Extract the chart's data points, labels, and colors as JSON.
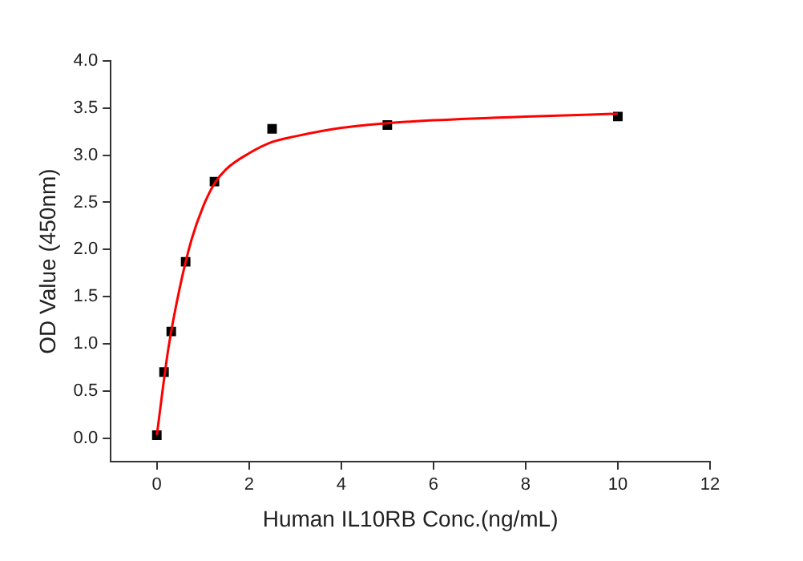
{
  "chart_data": {
    "type": "scatter",
    "xlabel": "Human IL10RB Conc.(ng/mL)",
    "ylabel": "OD Value (450nm)",
    "xlim": [
      -1,
      12
    ],
    "xticks": [
      0,
      2,
      4,
      6,
      8,
      10,
      12
    ],
    "ylim": [
      -0.25,
      4.0
    ],
    "yticks": [
      {
        "value": 0,
        "label": "0.0"
      },
      {
        "value": 0.5,
        "label": "0.5"
      },
      {
        "value": 1,
        "label": "1.0"
      },
      {
        "value": 1.5,
        "label": "1.5"
      },
      {
        "value": 2,
        "label": "2.0"
      },
      {
        "value": 2.5,
        "label": "2.5"
      },
      {
        "value": 3,
        "label": "3.0"
      },
      {
        "value": 3.5,
        "label": "3.5"
      },
      {
        "value": 4,
        "label": "4.0"
      }
    ],
    "grid": false,
    "legend": false,
    "series": [
      {
        "type": "line",
        "color": "#ff0000",
        "marker": "none",
        "line_style": "solid",
        "x": [
          0,
          0.25,
          0.5,
          0.75,
          1,
          1.25,
          1.5,
          2,
          2.5,
          3,
          4,
          5,
          6,
          8,
          10
        ],
        "values": [
          0.03,
          0.95,
          1.6,
          2.1,
          2.45,
          2.7,
          2.85,
          3.02,
          3.14,
          3.2,
          3.29,
          3.34,
          3.37,
          3.41,
          3.44
        ]
      },
      {
        "type": "scatter",
        "color": "#000000",
        "marker": "square",
        "x": [
          0,
          0.156,
          0.3125,
          0.625,
          1.25,
          2.5,
          5,
          10
        ],
        "values": [
          0.03,
          0.7,
          1.13,
          1.87,
          2.72,
          3.28,
          3.32,
          3.41
        ]
      }
    ]
  }
}
